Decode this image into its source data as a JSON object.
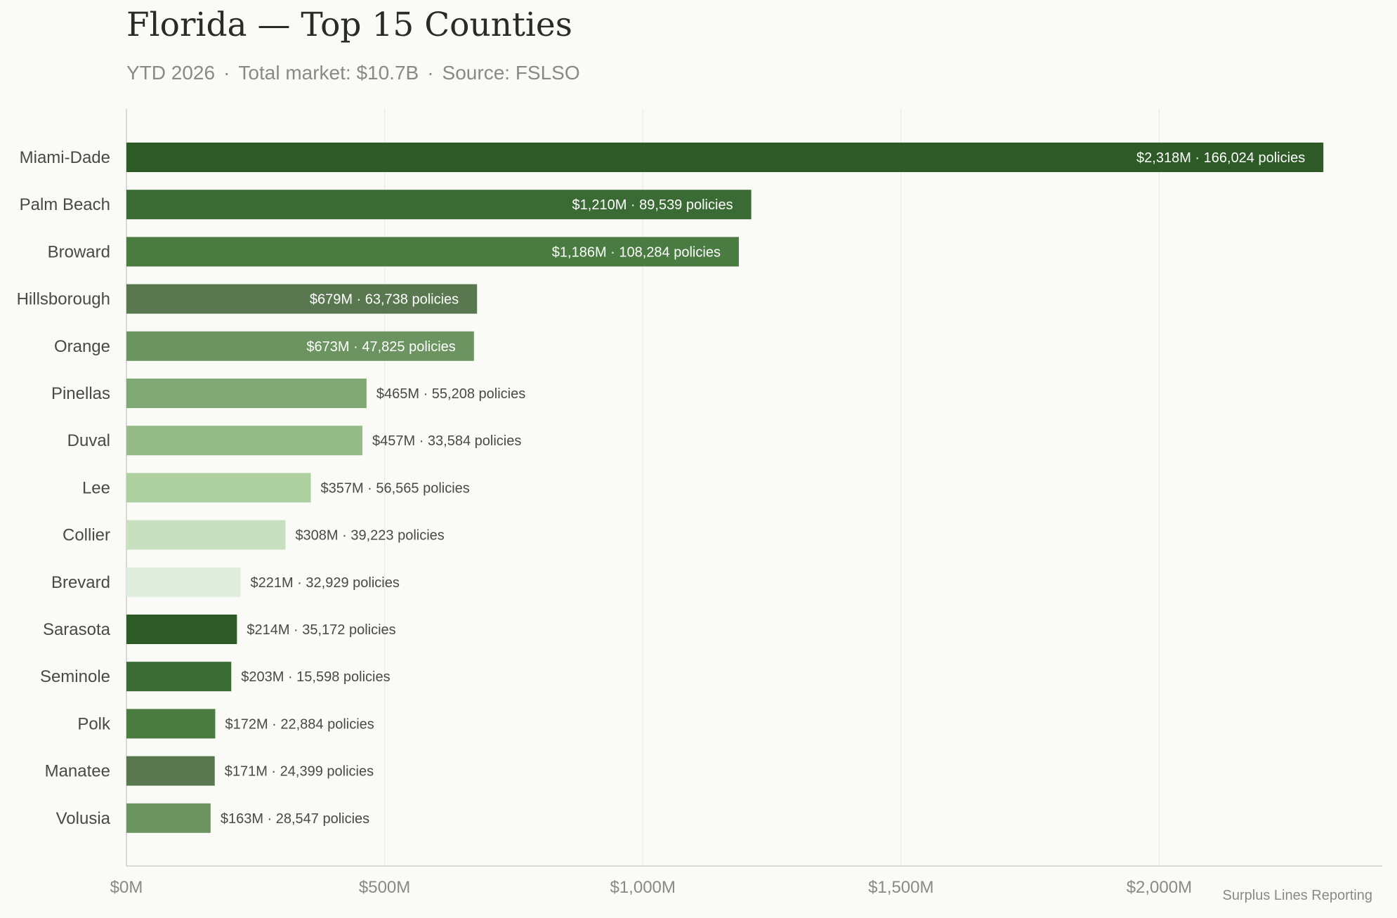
{
  "header": {
    "title": "Florida — Top 15 Counties",
    "subtitle_parts": [
      "YTD 2026",
      "Total market: $10.7B",
      "Source: FSLSO"
    ],
    "separator": "·"
  },
  "footer": {
    "note": "Surplus Lines Reporting"
  },
  "colors": {
    "bar_palette": [
      "#2d5a27",
      "#3a6b34",
      "#4a7c42",
      "#5a7850",
      "#6b9460",
      "#80a874",
      "#95bc88",
      "#aed0a0",
      "#c8e0c0",
      "#e0eedd"
    ],
    "label_inside": "#ffffff",
    "label_outside": "#4a4a44",
    "grid": "#e8e8e2",
    "axis": "#cfcfc8"
  },
  "chart_data": {
    "type": "bar",
    "orientation": "horizontal",
    "categories": [
      "Miami-Dade",
      "Palm Beach",
      "Broward",
      "Hillsborough",
      "Orange",
      "Pinellas",
      "Duval",
      "Lee",
      "Collier",
      "Brevard",
      "Sarasota",
      "Seminole",
      "Polk",
      "Manatee",
      "Volusia"
    ],
    "values": [
      2318,
      1210,
      1186,
      679,
      673,
      465,
      457,
      357,
      308,
      221,
      214,
      203,
      172,
      171,
      163
    ],
    "bar_labels": [
      "$2,318M · 166,024 policies",
      "$1,210M · 89,539 policies",
      "$1,186M · 108,284 policies",
      "$679M · 63,738 policies",
      "$673M · 47,825 policies",
      "$465M · 55,208 policies",
      "$457M · 33,584 policies",
      "$357M · 56,565 policies",
      "$308M · 39,223 policies",
      "$221M · 32,929 policies",
      "$214M · 35,172 policies",
      "$203M · 15,598 policies",
      "$172M · 22,884 policies",
      "$171M · 24,399 policies",
      "$163M · 28,547 policies"
    ],
    "x_ticks": [
      0,
      500,
      1000,
      1500,
      2000
    ],
    "x_tick_labels": [
      "$0M",
      "$500M",
      "$1,000M",
      "$1,500M",
      "$2,000M"
    ],
    "xlim": [
      0,
      2432
    ],
    "grid": true,
    "xlabel": "",
    "ylabel": ""
  }
}
